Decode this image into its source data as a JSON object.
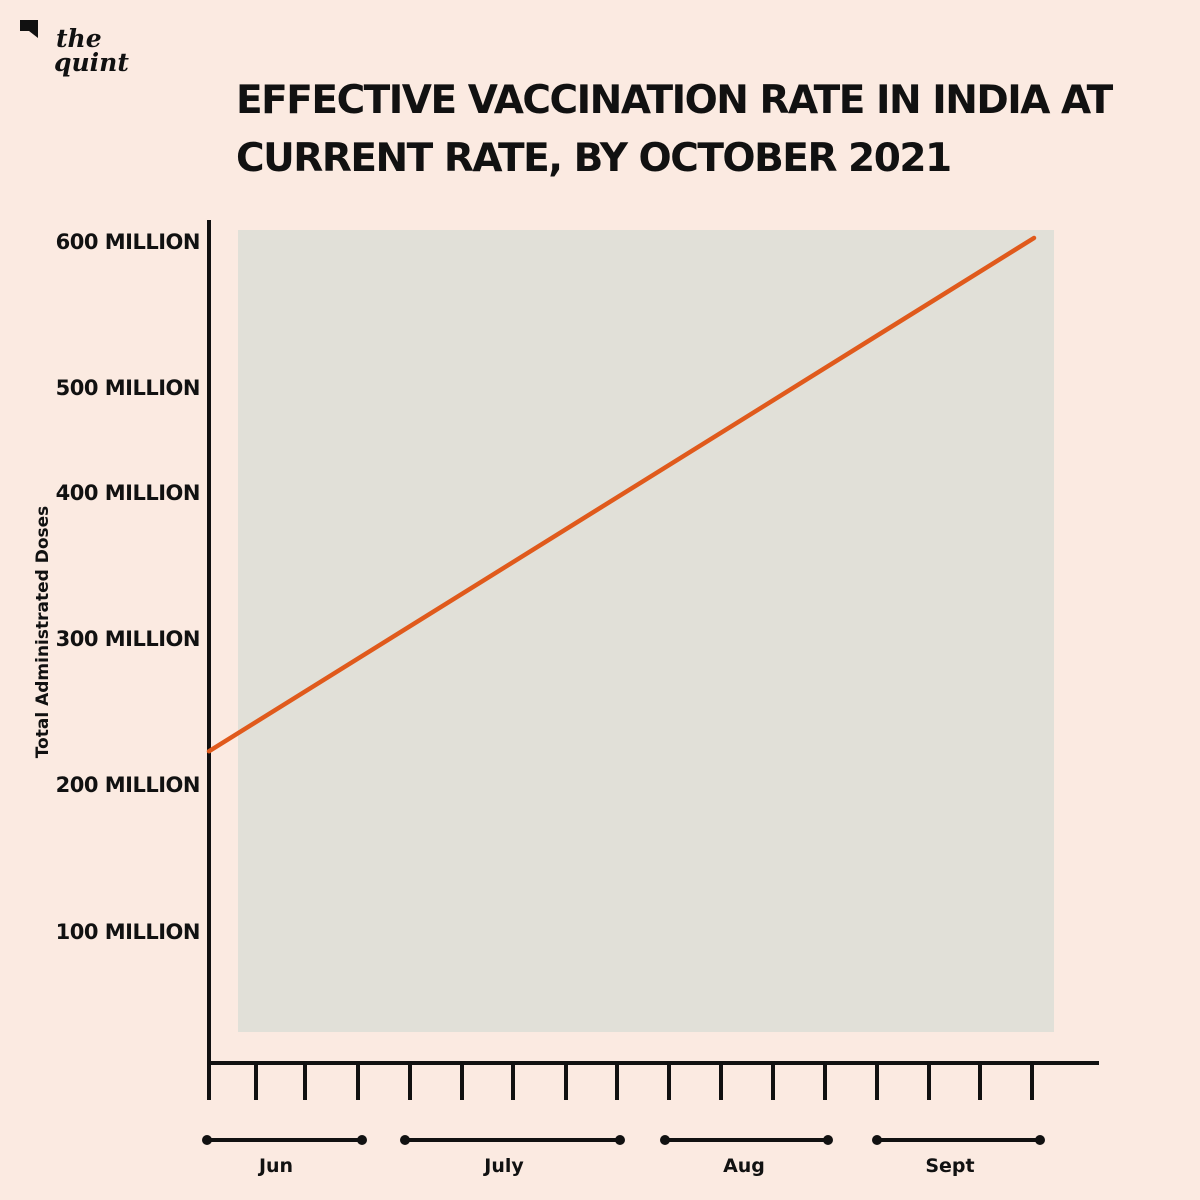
{
  "brand": {
    "line1": "the",
    "line2": "quint",
    "logo_icon": "quint-quote-icon"
  },
  "chart_data": {
    "type": "line",
    "title": "EFFECTIVE VACCINATION RATE IN INDIA AT CURRENT RATE, BY OCTOBER 2021",
    "title_lines": [
      "EFFECTIVE VACCINATION RATE IN INDIA AT",
      "CURRENT RATE, BY OCTOBER 2021"
    ],
    "ylabel": "Total Administrated Doses",
    "xlabel": "",
    "y_unit": "million",
    "ylim": [
      0,
      600
    ],
    "yticks": [
      100,
      200,
      300,
      400,
      500,
      600
    ],
    "ytick_labels": [
      "100 MILLION",
      "200 MILLION",
      "300 MILLION",
      "400 MILLION",
      "500 MILLION",
      "600 MILLION"
    ],
    "x_months": [
      "Jun",
      "July",
      "Aug",
      "Sept"
    ],
    "x_tick_count": 17,
    "series": [
      {
        "values_start_end": [
          224,
          600
        ],
        "x_range": [
          "start of June",
          "end of September"
        ]
      }
    ],
    "colors": {
      "line": "#e05a1c",
      "plot_bg": "#e1e0d8",
      "page_bg": "#fbeae1",
      "axis": "#111111"
    },
    "grid": false
  }
}
